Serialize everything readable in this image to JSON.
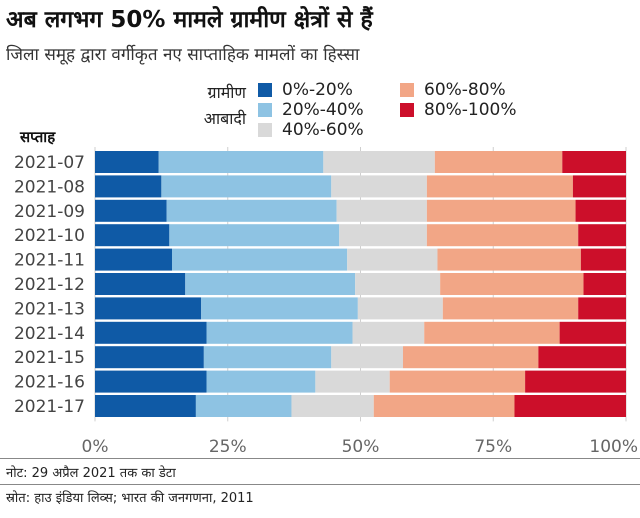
{
  "title": "अब लगभग 50% मामले ग्रामीण क्षेत्रों से हैं",
  "subtitle": "जिला समूह द्वारा वर्गीकृत नए साप्ताहिक मामलों का हिस्सा",
  "legend": {
    "title_line1": "ग्रामीण",
    "title_line2": "आबादी",
    "items": [
      {
        "label": "0%-20%",
        "color": "#0f5aa6"
      },
      {
        "label": "20%-40%",
        "color": "#8ec3e3"
      },
      {
        "label": "40%-60%",
        "color": "#d9d9d9"
      },
      {
        "label": "60%-80%",
        "color": "#f2a686"
      },
      {
        "label": "80%-100%",
        "color": "#cc0f2a"
      }
    ]
  },
  "y_axis_title": "सप्ताह",
  "note": "नोट: 29 अप्रैल 2021 तक का डेटा",
  "source": "स्रोत: हाउ इंडिया लिव्स; भारत की जनगणना, 2011",
  "chart_data": {
    "type": "bar",
    "orientation": "horizontal",
    "stacked": "percent",
    "categories": [
      "2021-07",
      "2021-08",
      "2021-09",
      "2021-10",
      "2021-11",
      "2021-12",
      "2021-13",
      "2021-14",
      "2021-15",
      "2021-16",
      "2021-17"
    ],
    "series": [
      {
        "name": "0%-20%",
        "color": "#0f5aa6",
        "values": [
          12,
          12.5,
          13.5,
          14,
          14.5,
          17,
          20,
          21,
          20.5,
          21,
          19
        ]
      },
      {
        "name": "20%-40%",
        "color": "#8ec3e3",
        "values": [
          31,
          32,
          32,
          32,
          33,
          32,
          29.5,
          27.5,
          24,
          20.5,
          18
        ]
      },
      {
        "name": "40%-60%",
        "color": "#d9d9d9",
        "values": [
          21,
          18,
          17,
          16.5,
          17,
          16,
          16,
          13.5,
          13.5,
          14,
          15.5
        ]
      },
      {
        "name": "60%-80%",
        "color": "#f2a686",
        "values": [
          24,
          27.5,
          28,
          28.5,
          27,
          27,
          25.5,
          25.5,
          25.5,
          25.5,
          26.5
        ]
      },
      {
        "name": "80%-100%",
        "color": "#cc0f2a",
        "values": [
          12,
          10,
          9.5,
          9,
          8.5,
          8,
          9,
          12.5,
          16.5,
          19,
          21
        ]
      }
    ],
    "xlim": [
      0,
      100
    ],
    "x_ticks": [
      "0%",
      "25%",
      "50%",
      "75%",
      "100%"
    ],
    "grid": true
  }
}
